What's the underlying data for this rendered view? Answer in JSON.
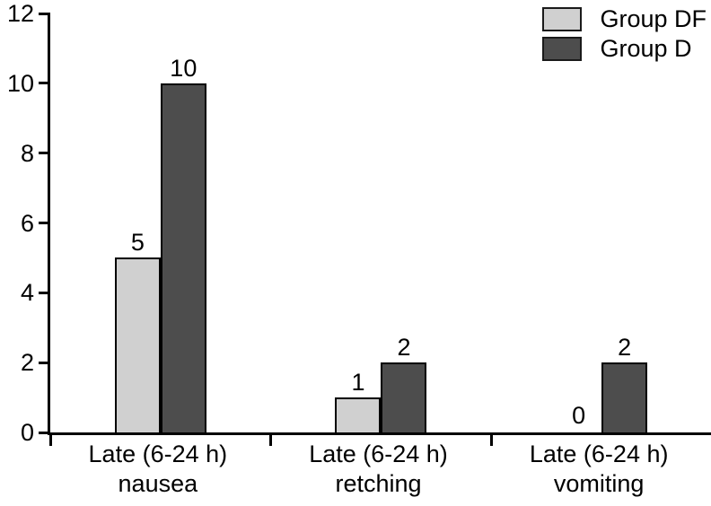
{
  "chart_data": {
    "type": "bar",
    "title": "",
    "xlabel": "",
    "ylabel": "",
    "ylim": [
      0,
      12
    ],
    "yticks": [
      0,
      2,
      4,
      6,
      8,
      10,
      12
    ],
    "grid": false,
    "value_labels": true,
    "legend_position": "top-right",
    "categories": [
      {
        "line1": "Late (6-24 h)",
        "line2": "nausea"
      },
      {
        "line1": "Late (6-24 h)",
        "line2": "retching"
      },
      {
        "line1": "Late (6-24 h)",
        "line2": "vomiting"
      }
    ],
    "series": [
      {
        "name": "Group DF",
        "color": "#d0d0d0",
        "values": [
          5,
          1,
          0
        ]
      },
      {
        "name": "Group D",
        "color": "#4d4d4d",
        "values": [
          10,
          2,
          2
        ]
      }
    ],
    "colors": {
      "axis": "#000000",
      "bar_border": "#000000",
      "text": "#000000",
      "background": "#ffffff"
    }
  }
}
